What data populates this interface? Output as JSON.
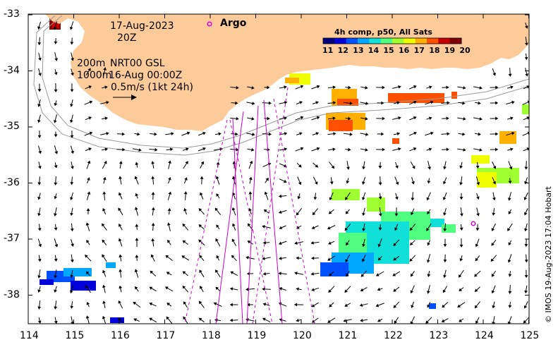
{
  "map": {
    "date": "17-Aug-2023",
    "time": "20Z",
    "depth_200": "200m",
    "depth_1000": "1000m",
    "product": "NRT00 GSL",
    "product_time": "16-Aug 00:00Z",
    "scale_label": "0.5m/s (1kt 24h)",
    "argo_label": "Argo",
    "copyright": "© IMOS 19-Aug-2023 17:04 Hobart"
  },
  "colorbar": {
    "title": "4h comp, p50, All Sats",
    "ticks": [
      "11",
      "12",
      "13",
      "14",
      "15",
      "16",
      "17",
      "18",
      "19",
      "20"
    ],
    "colors": [
      "#000080",
      "#0000d8",
      "#0050ff",
      "#00a8ff",
      "#10e0d8",
      "#50ff80",
      "#a0ff30",
      "#f0ff00",
      "#ffb000",
      "#ff5000",
      "#c80000",
      "#800000"
    ]
  },
  "axes": {
    "lon_ticks": [
      "114",
      "115",
      "116",
      "117",
      "118",
      "119",
      "120",
      "121",
      "122",
      "123",
      "124",
      "125"
    ],
    "lat_ticks": [
      "-33",
      "-34",
      "-35",
      "-36",
      "-37",
      "-38"
    ]
  },
  "colors": {
    "land": "#fdcb9a",
    "isobath": "#9a9a9a",
    "track": "#cc00cc",
    "argo": "#dd00dd"
  }
}
